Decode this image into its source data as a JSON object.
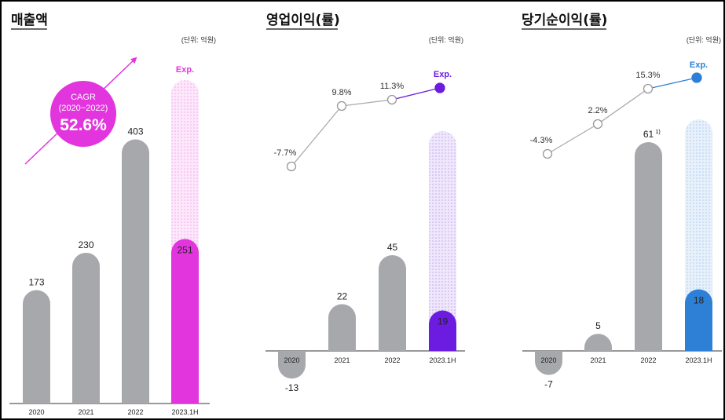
{
  "unit_label": "(단위: 억원)",
  "exp_label": "Exp.",
  "cagr": {
    "title": "CAGR",
    "period": "(2020~2022)",
    "value": "52.6%"
  },
  "colors": {
    "bar_gray": "#a7a8ab",
    "revenue_accent": "#e335de",
    "op_accent": "#6b1ce0",
    "net_accent": "#2e7fd6",
    "line_gray": "#aaaaaa"
  },
  "chart_data": [
    {
      "type": "bar",
      "title": "매출액",
      "categories": [
        "2020",
        "2021",
        "2022",
        "2023.1H"
      ],
      "values": [
        173,
        230,
        403,
        251
      ],
      "value_labels": [
        "173",
        "230",
        "403",
        "251"
      ],
      "expected_index": 3,
      "expected_full_year_bar": true
    },
    {
      "type": "bar",
      "title": "영업이익(률)",
      "categories": [
        "2020",
        "2021",
        "2022",
        "2023.1H"
      ],
      "values": [
        -13,
        22,
        45,
        19
      ],
      "value_labels": [
        "-13",
        "22",
        "45",
        "19"
      ],
      "expected_index": 3,
      "expected_full_year_bar": true,
      "margin_line": {
        "labels": [
          "-7.7%",
          "9.8%",
          "11.3%",
          "Exp."
        ],
        "values": [
          -7.7,
          9.8,
          11.3,
          null
        ]
      }
    },
    {
      "type": "bar",
      "title": "당기순이익(률)",
      "categories": [
        "2020",
        "2021",
        "2022",
        "2023.1H"
      ],
      "values": [
        -7,
        5,
        61,
        18
      ],
      "value_labels": [
        "-7",
        "5",
        "61",
        "18"
      ],
      "footnote_marks": [
        "",
        "",
        "1)",
        ""
      ],
      "expected_index": 3,
      "expected_full_year_bar": true,
      "margin_line": {
        "labels": [
          "-4.3%",
          "2.2%",
          "15.3%",
          "Exp."
        ],
        "values": [
          -4.3,
          2.2,
          15.3,
          null
        ]
      }
    }
  ]
}
